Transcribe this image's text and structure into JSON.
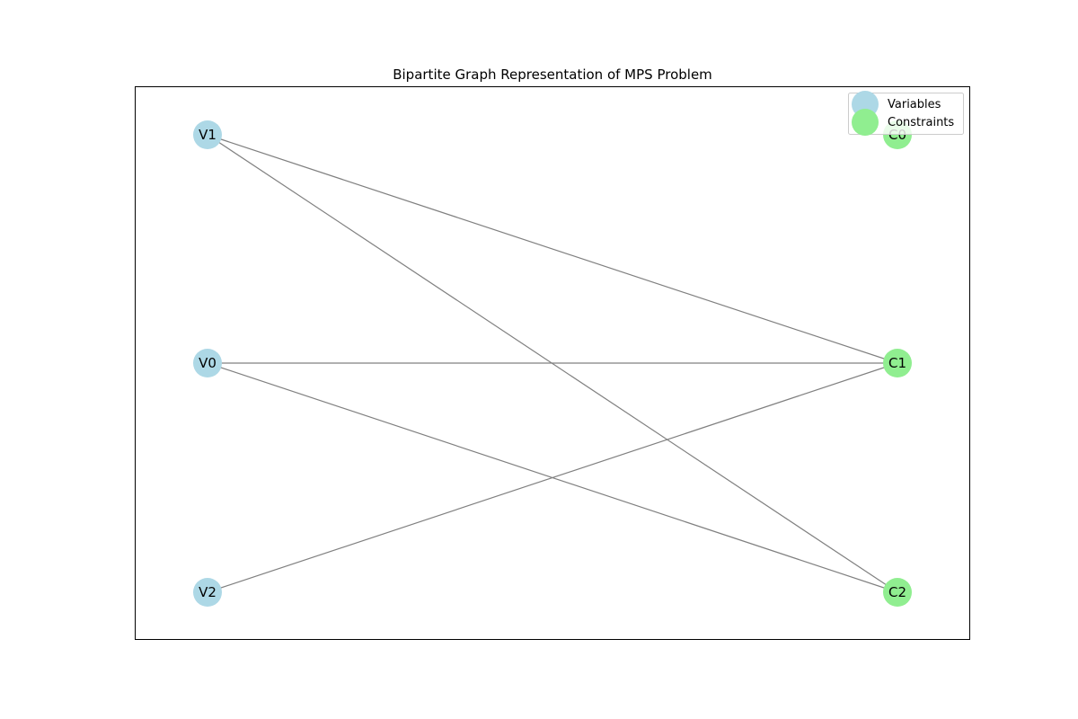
{
  "figure": {
    "title": "Bipartite Graph Representation of MPS Problem"
  },
  "colors": {
    "variable_node": "#add8e6",
    "constraint_node": "#90ee90",
    "edge": "#808080",
    "frame": "#000000"
  },
  "legend": {
    "items": [
      {
        "label": "Variables",
        "kind": "variable"
      },
      {
        "label": "Constraints",
        "kind": "constraint"
      }
    ]
  },
  "graph": {
    "variables": [
      "V1",
      "V0",
      "V2"
    ],
    "constraints": [
      "C0",
      "C1",
      "C2"
    ],
    "edges": [
      [
        "V1",
        "C1"
      ],
      [
        "V1",
        "C2"
      ],
      [
        "V0",
        "C1"
      ],
      [
        "V0",
        "C2"
      ],
      [
        "V2",
        "C1"
      ]
    ]
  }
}
